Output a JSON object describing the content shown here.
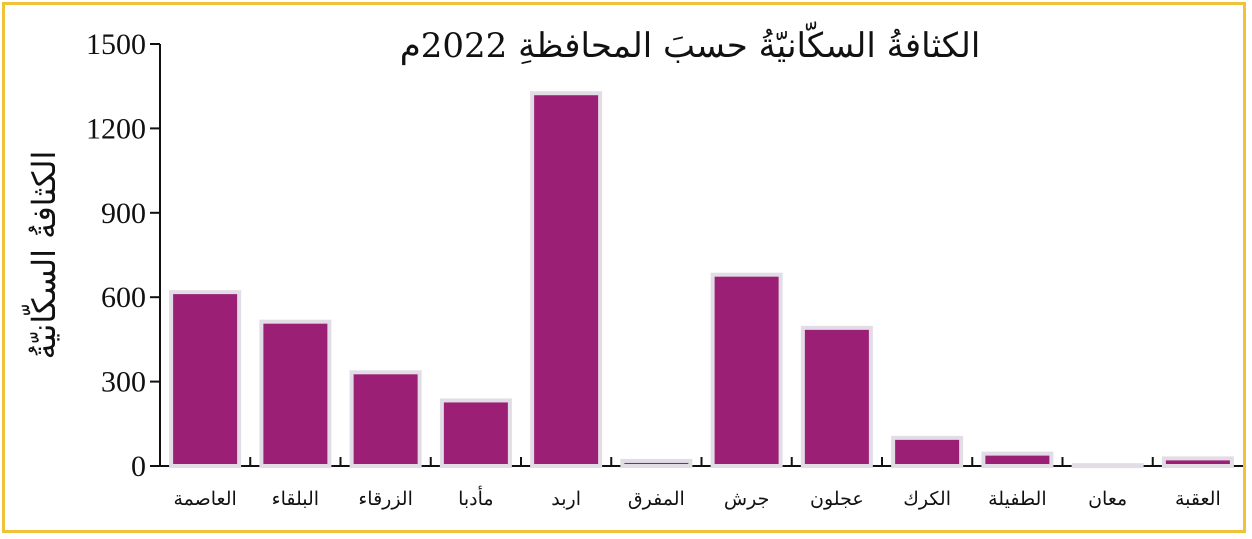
{
  "chart_data": {
    "type": "bar",
    "title": "الكثافةُ السكّانيّةُ حسبَ المحافظةِ 2022م",
    "xlabel": "",
    "ylabel": "الكثافةُ السكّانيّةُ",
    "ylim": [
      0,
      1500
    ],
    "yticks": [
      0,
      300,
      600,
      900,
      1200,
      1500
    ],
    "categories": [
      "العاصمة",
      "البلقاء",
      "الزرقاء",
      "مأدبا",
      "اربد",
      "المفرق",
      "جرش",
      "عجلون",
      "الكرك",
      "الطفيلة",
      "معان",
      "العقبة"
    ],
    "values": [
      618,
      513,
      333,
      233,
      1325,
      18,
      680,
      491,
      100,
      44,
      3,
      27
    ],
    "bar_color": "#9b1f75",
    "bar_outline_color": "#e2dce6",
    "frame_color": "#f0c23a",
    "grid": false
  }
}
